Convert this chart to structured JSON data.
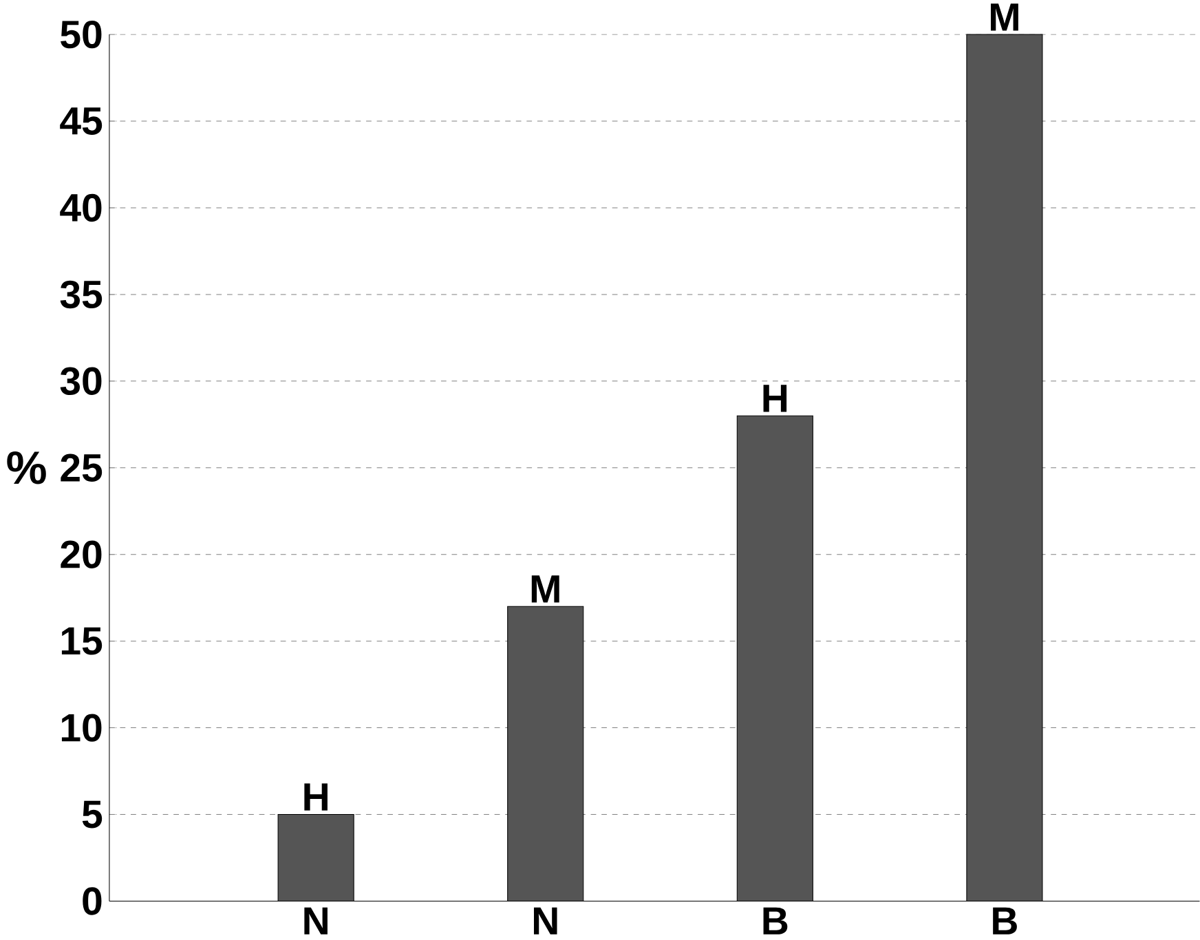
{
  "chart_data": {
    "type": "bar",
    "categories": [
      "N",
      "N",
      "B",
      "B"
    ],
    "values": [
      5,
      17,
      28,
      50
    ],
    "color": "#555555",
    "ylabel": "%",
    "ylim": [
      0,
      50
    ],
    "yticks": [
      0,
      5,
      10,
      15,
      20,
      25,
      30,
      35,
      40,
      45,
      50
    ],
    "grid": "y",
    "line_style": "dashed",
    "annotations": [
      "H",
      "M",
      "H",
      "M"
    ]
  }
}
